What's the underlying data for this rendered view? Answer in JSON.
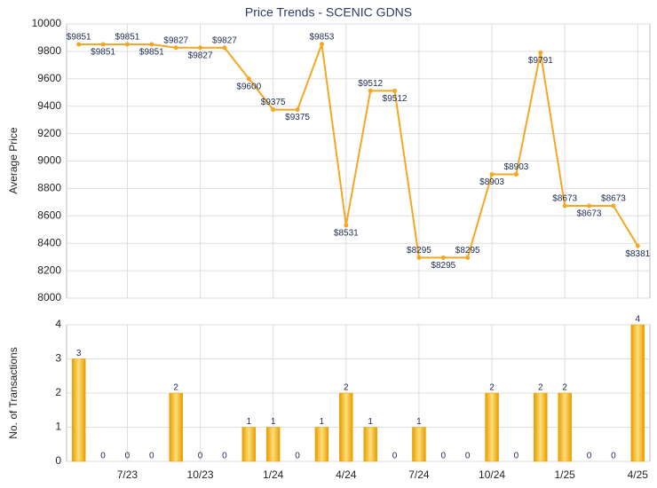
{
  "chart_data": [
    {
      "type": "line",
      "title": "Price Trends - SCENIC GDNS",
      "y_label": "Average Price",
      "color": "#f5a623",
      "values": [
        9851,
        9851,
        9851,
        9851,
        9827,
        9827,
        9827,
        9600,
        9375,
        9375,
        9853,
        8531,
        9512,
        9512,
        8295,
        8295,
        8295,
        8903,
        8903,
        9791,
        8673,
        8673,
        8673,
        8381
      ],
      "value_labels": [
        "$9851",
        "$9851",
        "$9851",
        "$9851",
        "$9827",
        "$9827",
        "$9827",
        "$9600",
        "$9375",
        "$9375",
        "$9853",
        "$8531",
        "$9512",
        "$9512",
        "$8295",
        "$8295",
        "$8295",
        "$8903",
        "$8903",
        "$9791",
        "$8673",
        "$8673",
        "$8673",
        "$8381"
      ],
      "ylim": [
        8000,
        10000
      ],
      "yticks": [
        8000,
        8200,
        8400,
        8600,
        8800,
        9000,
        9200,
        9400,
        9600,
        9800,
        10000
      ],
      "grid": true
    },
    {
      "type": "bar",
      "y_label": "No. of Transactions",
      "color": "#f0a30a",
      "categories": [
        null,
        null,
        "7/23",
        null,
        null,
        "10/23",
        null,
        null,
        "1/24",
        null,
        null,
        "4/24",
        null,
        null,
        "7/24",
        null,
        null,
        "10/24",
        null,
        null,
        "1/25",
        null,
        null,
        "4/25"
      ],
      "values": [
        3,
        0,
        0,
        0,
        2,
        0,
        0,
        1,
        1,
        0,
        1,
        2,
        1,
        0,
        1,
        0,
        0,
        2,
        0,
        2,
        2,
        0,
        0,
        4
      ],
      "ylim": [
        0,
        4
      ],
      "yticks": [
        0,
        1,
        2,
        3,
        4
      ],
      "grid": true
    }
  ]
}
